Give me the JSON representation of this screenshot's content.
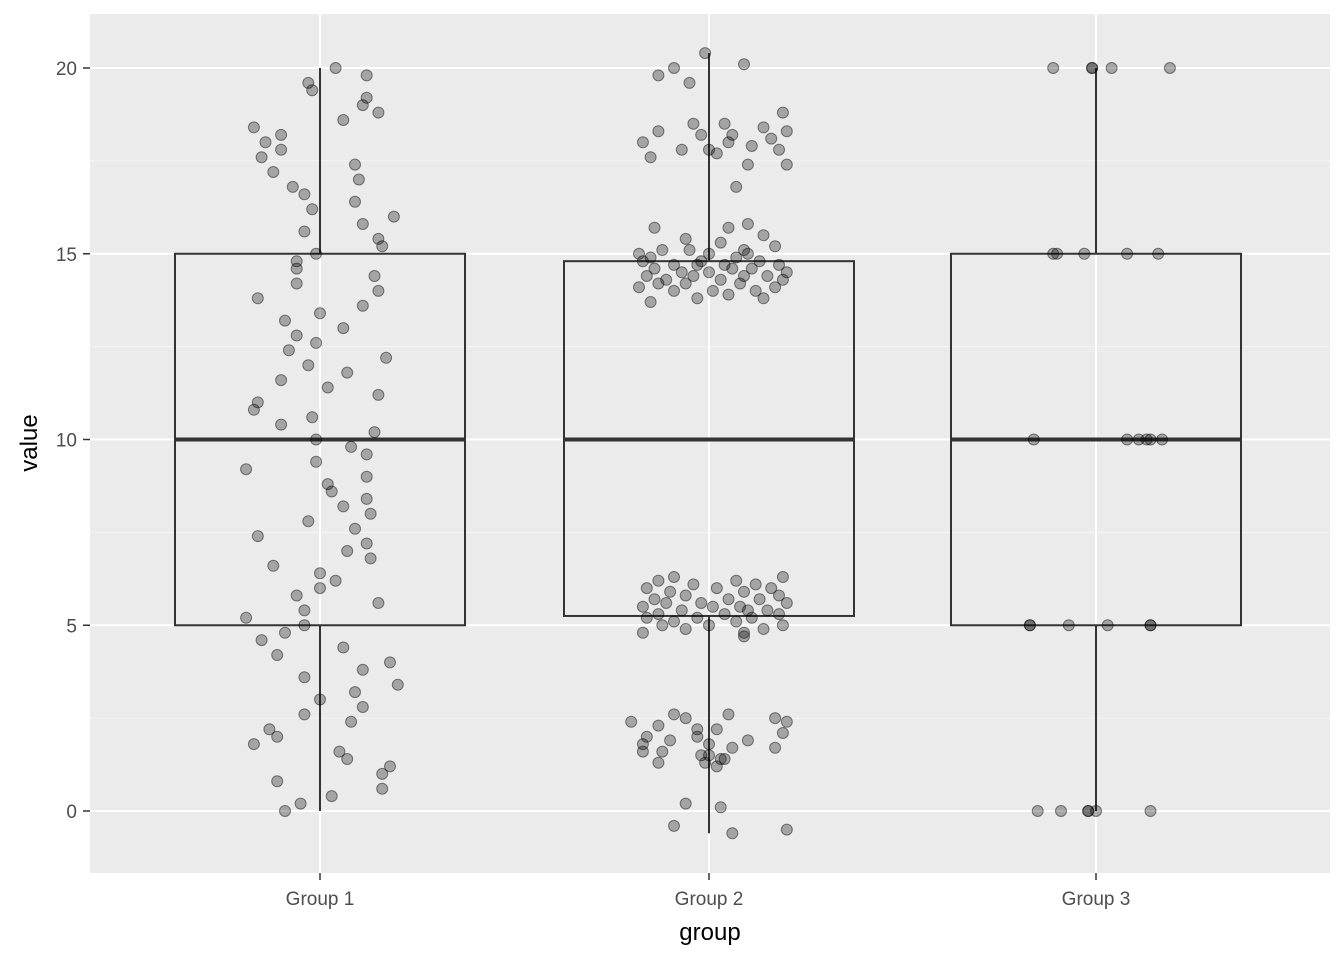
{
  "chart_data": {
    "type": "boxplot",
    "xlabel": "group",
    "ylabel": "value",
    "categories": [
      "Group 1",
      "Group 2",
      "Group 3"
    ],
    "ylim": [
      -1.6,
      21.5
    ],
    "yticks": [
      0,
      5,
      10,
      15,
      20
    ],
    "ytick_labels": [
      "0",
      "5",
      "10",
      "15",
      "20"
    ],
    "grid": true,
    "legend": "none",
    "colors": {
      "panel_background": "#ebebeb",
      "grid_major": "#ffffff",
      "grid_minor": "#f5f5f5",
      "box_outline": "#333333",
      "point_fill": "#000000",
      "point_alpha": 0.3
    },
    "boxes": [
      {
        "group": "Group 1",
        "lower_whisker": 0.0,
        "q1": 5.0,
        "median": 10.0,
        "q3": 15.0,
        "upper_whisker": 20.0
      },
      {
        "group": "Group 2",
        "lower_whisker": -0.6,
        "q1": 5.25,
        "median": 10.0,
        "q3": 14.8,
        "upper_whisker": 20.4
      },
      {
        "group": "Group 3",
        "lower_whisker": 0.0,
        "q1": 5.0,
        "median": 10.0,
        "q3": 15.0,
        "upper_whisker": 20.0
      }
    ],
    "points": [
      {
        "group": "Group 1",
        "values": [
          20.0,
          19.8,
          19.6,
          19.4,
          19.2,
          19.0,
          18.8,
          18.6,
          18.4,
          18.2,
          18.0,
          17.8,
          17.6,
          17.4,
          17.2,
          17.0,
          16.8,
          16.6,
          16.4,
          16.2,
          16.0,
          15.8,
          15.6,
          15.4,
          15.2,
          15.0,
          14.8,
          14.6,
          14.4,
          14.2,
          14.0,
          13.8,
          13.6,
          13.4,
          13.2,
          13.0,
          12.8,
          12.6,
          12.4,
          12.2,
          12.0,
          11.8,
          11.6,
          11.4,
          11.2,
          11.0,
          10.8,
          10.6,
          10.4,
          10.2,
          10.0,
          9.8,
          9.6,
          9.4,
          9.2,
          9.0,
          8.8,
          8.6,
          8.4,
          8.2,
          8.0,
          7.8,
          7.6,
          7.4,
          7.2,
          7.0,
          6.8,
          6.6,
          6.4,
          6.2,
          6.0,
          5.8,
          5.6,
          5.4,
          5.2,
          5.0,
          4.8,
          4.6,
          4.4,
          4.2,
          4.0,
          3.8,
          3.6,
          3.4,
          3.2,
          3.0,
          2.8,
          2.6,
          2.4,
          2.2,
          2.0,
          1.8,
          1.6,
          1.4,
          1.2,
          1.0,
          0.8,
          0.6,
          0.4,
          0.2,
          0.0
        ],
        "jitter": [
          0.04,
          0.12,
          -0.03,
          -0.02,
          0.12,
          0.11,
          0.15,
          0.06,
          -0.17,
          -0.1,
          -0.14,
          -0.1,
          -0.15,
          0.09,
          -0.12,
          0.1,
          -0.07,
          -0.04,
          0.09,
          -0.02,
          0.19,
          0.11,
          -0.04,
          0.15,
          0.16,
          -0.01,
          -0.06,
          -0.06,
          0.14,
          -0.06,
          0.15,
          -0.16,
          0.11,
          0.0,
          -0.09,
          0.06,
          -0.06,
          -0.01,
          -0.08,
          0.17,
          -0.03,
          0.07,
          -0.1,
          0.02,
          0.15,
          -0.16,
          -0.17,
          -0.02,
          -0.1,
          0.14,
          -0.01,
          0.08,
          0.12,
          -0.01,
          -0.19,
          0.12,
          0.02,
          0.03,
          0.12,
          0.06,
          0.13,
          -0.03,
          0.09,
          -0.16,
          0.12,
          0.07,
          0.13,
          -0.12,
          0.0,
          0.04,
          0.0,
          -0.06,
          0.15,
          -0.04,
          -0.19,
          -0.04,
          -0.09,
          -0.15,
          0.06,
          -0.11,
          0.18,
          0.11,
          -0.04,
          0.2,
          0.09,
          0.0,
          0.11,
          -0.04,
          0.08,
          -0.13,
          -0.11,
          -0.17,
          0.05,
          0.07,
          0.18,
          0.16,
          -0.11,
          0.16,
          0.03,
          -0.05,
          -0.09
        ]
      },
      {
        "group": "Group 2",
        "values": [
          20.4,
          20.1,
          20.0,
          19.8,
          19.6,
          18.8,
          18.5,
          18.5,
          18.4,
          18.3,
          18.3,
          18.2,
          18.2,
          18.1,
          18.0,
          18.0,
          17.9,
          17.8,
          17.8,
          17.8,
          17.7,
          17.6,
          17.4,
          17.4,
          16.8,
          15.8,
          15.7,
          15.7,
          15.5,
          15.4,
          15.3,
          15.2,
          15.1,
          15.1,
          15.1,
          15.0,
          15.0,
          15.0,
          14.9,
          14.9,
          14.8,
          14.8,
          14.8,
          14.7,
          14.7,
          14.7,
          14.7,
          14.6,
          14.6,
          14.6,
          14.5,
          14.5,
          14.5,
          14.4,
          14.4,
          14.4,
          14.4,
          14.3,
          14.3,
          14.3,
          14.2,
          14.2,
          14.2,
          14.1,
          14.1,
          14.0,
          14.0,
          14.0,
          13.9,
          13.8,
          13.8,
          13.7,
          6.3,
          6.3,
          6.2,
          6.2,
          6.1,
          6.1,
          6.0,
          6.0,
          6.0,
          5.9,
          5.9,
          5.8,
          5.8,
          5.7,
          5.7,
          5.7,
          5.6,
          5.6,
          5.6,
          5.5,
          5.5,
          5.5,
          5.4,
          5.4,
          5.4,
          5.3,
          5.3,
          5.3,
          5.2,
          5.2,
          5.2,
          5.1,
          5.1,
          5.0,
          5.0,
          5.0,
          4.9,
          4.9,
          4.8,
          4.8,
          4.7,
          2.6,
          2.6,
          2.5,
          2.5,
          2.4,
          2.4,
          2.3,
          2.2,
          2.2,
          2.1,
          2.0,
          2.0,
          1.9,
          1.9,
          1.8,
          1.8,
          1.7,
          1.7,
          1.6,
          1.6,
          1.5,
          1.5,
          1.4,
          1.4,
          1.3,
          1.3,
          1.2,
          0.2,
          0.1,
          -0.4,
          -0.5,
          -0.6
        ],
        "jitter": [
          -0.01,
          0.09,
          -0.09,
          -0.13,
          -0.05,
          0.19,
          0.04,
          -0.04,
          0.14,
          -0.13,
          0.2,
          0.06,
          -0.02,
          0.16,
          -0.17,
          0.05,
          0.11,
          -0.07,
          0.0,
          0.18,
          0.02,
          -0.15,
          0.1,
          0.2,
          0.07,
          0.1,
          0.05,
          -0.14,
          0.14,
          -0.06,
          0.03,
          0.17,
          -0.12,
          -0.05,
          0.09,
          -0.18,
          0.0,
          0.1,
          -0.15,
          0.07,
          -0.02,
          0.13,
          -0.17,
          0.04,
          -0.09,
          0.18,
          -0.03,
          0.11,
          -0.14,
          0.06,
          -0.07,
          0.2,
          0.0,
          -0.16,
          0.09,
          -0.04,
          0.15,
          -0.11,
          0.03,
          0.19,
          -0.13,
          0.08,
          -0.06,
          0.17,
          -0.18,
          0.01,
          0.12,
          -0.09,
          0.05,
          -0.03,
          0.14,
          -0.15,
          -0.09,
          0.19,
          0.07,
          -0.13,
          0.12,
          -0.04,
          0.16,
          -0.16,
          0.02,
          0.09,
          -0.1,
          0.18,
          -0.06,
          0.05,
          -0.14,
          0.13,
          -0.02,
          0.2,
          -0.11,
          0.08,
          -0.17,
          0.01,
          0.15,
          -0.07,
          0.1,
          -0.13,
          0.04,
          0.18,
          -0.03,
          0.11,
          -0.16,
          0.07,
          -0.09,
          0.19,
          0.0,
          -0.12,
          0.14,
          -0.06,
          -0.17,
          0.09,
          0.09,
          -0.09,
          0.05,
          0.17,
          -0.06,
          -0.2,
          0.2,
          -0.13,
          -0.03,
          0.02,
          0.19,
          -0.16,
          -0.03,
          0.1,
          -0.1,
          0.0,
          -0.17,
          0.06,
          0.17,
          -0.17,
          -0.12,
          -0.02,
          0.0,
          0.03,
          0.04,
          -0.13,
          -0.01,
          0.02,
          -0.06,
          0.03,
          -0.09,
          0.2,
          0.06
        ],
        "ymirror_note": ""
      },
      {
        "group": "Group 3",
        "values": [
          20.0,
          20.0,
          20.0,
          20.0,
          20.0,
          15.0,
          15.0,
          15.0,
          15.0,
          15.0,
          10.0,
          10.0,
          10.0,
          10.0,
          10.0,
          10.0,
          5.0,
          5.0,
          5.0,
          5.0,
          5.0,
          5.0,
          0.0,
          0.0,
          0.0,
          0.0,
          0.0,
          0.0
        ],
        "jitter": [
          -0.11,
          -0.01,
          -0.01,
          0.04,
          0.19,
          -0.11,
          -0.1,
          -0.03,
          0.08,
          0.16,
          -0.16,
          0.08,
          0.11,
          0.13,
          0.14,
          0.17,
          -0.17,
          -0.17,
          -0.07,
          0.03,
          0.14,
          0.14,
          -0.15,
          -0.09,
          -0.02,
          -0.02,
          0.0,
          0.14
        ]
      }
    ]
  }
}
